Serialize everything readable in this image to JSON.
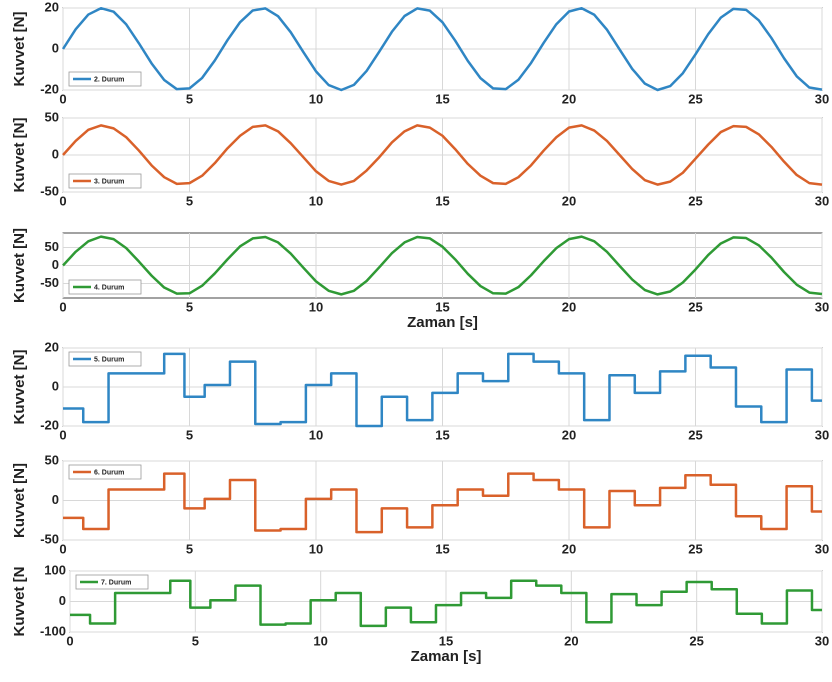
{
  "chart_data": [
    {
      "type": "line",
      "ylabel": "Kuvvet [N]",
      "xlim": [
        0,
        30
      ],
      "xticks": [
        0,
        5,
        10,
        15,
        20,
        25,
        30
      ],
      "ylim": [
        -20,
        20
      ],
      "yticks": [
        -20,
        0,
        20
      ],
      "grid": true,
      "legend": "lower left",
      "x": [
        0,
        0.5,
        1,
        1.5,
        2,
        2.5,
        3,
        3.5,
        4,
        4.5,
        5,
        5.5,
        6,
        6.5,
        7,
        7.5,
        8,
        8.5,
        9,
        9.5,
        10,
        10.5,
        11,
        11.5,
        12,
        12.5,
        13,
        13.5,
        14,
        14.5,
        15,
        15.5,
        16,
        16.5,
        17,
        17.5,
        18,
        18.5,
        19,
        19.5,
        20,
        20.5,
        21,
        21.5,
        22,
        22.5,
        23,
        23.5,
        24,
        24.5,
        25,
        25.5,
        26,
        26.5,
        27,
        27.5,
        28,
        28.5,
        29,
        29.5,
        30
      ],
      "series": [
        {
          "name": "2. Durum",
          "color": "#2f86c4",
          "values": [
            0,
            9.6,
            16.8,
            19.9,
            18.2,
            12,
            2.8,
            -7,
            -15.1,
            -19.6,
            -19.2,
            -14.1,
            -5.6,
            4.3,
            13.1,
            18.8,
            19.8,
            16,
            8.2,
            -1.5,
            -10.9,
            -17.6,
            -20,
            -17.5,
            -10.7,
            -1.3,
            8.4,
            16.1,
            19.8,
            18.7,
            13,
            4.1,
            -5.8,
            -14.2,
            -19.2,
            -19.6,
            -15,
            -6.8,
            3,
            12.1,
            18.3,
            19.9,
            16.7,
            9.4,
            -0.2,
            -9.7,
            -16.9,
            -20,
            -18.1,
            -11.8,
            -2.6,
            7.2,
            15.3,
            19.6,
            19.1,
            14,
            5.4,
            -4.5,
            -13.3,
            -18.8,
            -19.8
          ]
        }
      ]
    },
    {
      "type": "line",
      "ylabel": "Kuvvet [N]",
      "xlim": [
        0,
        30
      ],
      "xticks": [
        0,
        5,
        10,
        15,
        20,
        25,
        30
      ],
      "ylim": [
        -50,
        50
      ],
      "yticks": [
        -50,
        0,
        50
      ],
      "grid": true,
      "legend": "lower left",
      "x": [
        0,
        0.5,
        1,
        1.5,
        2,
        2.5,
        3,
        3.5,
        4,
        4.5,
        5,
        5.5,
        6,
        6.5,
        7,
        7.5,
        8,
        8.5,
        9,
        9.5,
        10,
        10.5,
        11,
        11.5,
        12,
        12.5,
        13,
        13.5,
        14,
        14.5,
        15,
        15.5,
        16,
        16.5,
        17,
        17.5,
        18,
        18.5,
        19,
        19.5,
        20,
        20.5,
        21,
        21.5,
        22,
        22.5,
        23,
        23.5,
        24,
        24.5,
        25,
        25.5,
        26,
        26.5,
        27,
        27.5,
        28,
        28.5,
        29,
        29.5,
        30
      ],
      "series": [
        {
          "name": "3. Durum",
          "color": "#d9612a",
          "values": [
            0,
            19,
            34,
            40,
            36,
            24,
            6,
            -14,
            -30,
            -39,
            -38,
            -28,
            -11,
            9,
            26,
            38,
            40,
            32,
            16,
            -3,
            -22,
            -35,
            -40,
            -35,
            -21,
            -3,
            17,
            32,
            40,
            37,
            26,
            8,
            -12,
            -28,
            -38,
            -39,
            -30,
            -14,
            6,
            24,
            37,
            40,
            33,
            19,
            0,
            -19,
            -34,
            -40,
            -36,
            -24,
            -5,
            14,
            31,
            39,
            38,
            28,
            11,
            -9,
            -27,
            -38,
            -40
          ]
        }
      ]
    },
    {
      "type": "line",
      "ylabel": "Kuvvet [N]",
      "xlabel": "Zaman [s]",
      "xlim": [
        0,
        30
      ],
      "xticks": [
        0,
        5,
        10,
        15,
        20,
        25,
        30
      ],
      "ylim": [
        -90,
        90
      ],
      "yticks": [
        -50,
        0,
        50
      ],
      "grid": true,
      "legend": "lower left",
      "x": [
        0,
        0.5,
        1,
        1.5,
        2,
        2.5,
        3,
        3.5,
        4,
        4.5,
        5,
        5.5,
        6,
        6.5,
        7,
        7.5,
        8,
        8.5,
        9,
        9.5,
        10,
        10.5,
        11,
        11.5,
        12,
        12.5,
        13,
        13.5,
        14,
        14.5,
        15,
        15.5,
        16,
        16.5,
        17,
        17.5,
        18,
        18.5,
        19,
        19.5,
        20,
        20.5,
        21,
        21.5,
        22,
        22.5,
        23,
        23.5,
        24,
        24.5,
        25,
        25.5,
        26,
        26.5,
        27,
        27.5,
        28,
        28.5,
        29,
        29.5,
        30
      ],
      "series": [
        {
          "name": "4. Durum",
          "color": "#2f9a35",
          "values": [
            0,
            38,
            67,
            80,
            73,
            48,
            11,
            -28,
            -61,
            -78,
            -77,
            -56,
            -22,
            17,
            53,
            75,
            79,
            64,
            33,
            -6,
            -44,
            -70,
            -80,
            -70,
            -43,
            -5,
            34,
            64,
            79,
            75,
            52,
            17,
            -23,
            -57,
            -77,
            -78,
            -60,
            -27,
            12,
            48,
            73,
            80,
            67,
            38,
            -1,
            -39,
            -68,
            -80,
            -72,
            -47,
            -11,
            29,
            61,
            78,
            76,
            56,
            22,
            -18,
            -53,
            -75,
            -79
          ]
        }
      ]
    },
    {
      "type": "line",
      "step": "post",
      "ylabel": "Kuvvet [N]",
      "xlim": [
        0,
        30
      ],
      "xticks": [
        0,
        5,
        10,
        15,
        20,
        25,
        30
      ],
      "ylim": [
        -20,
        20
      ],
      "yticks": [
        -20,
        0,
        20
      ],
      "grid": true,
      "legend": "upper left",
      "x": [
        0,
        0.8,
        1.8,
        4,
        4.8,
        5.6,
        6.6,
        7.6,
        8.6,
        9.6,
        10.6,
        11.6,
        12.6,
        13.6,
        14.6,
        15.6,
        16.6,
        17.6,
        18.6,
        19.6,
        20.6,
        21.6,
        22.6,
        23.6,
        24.6,
        25.6,
        26.6,
        27.6,
        28.6,
        29.6,
        30
      ],
      "series": [
        {
          "name": "5. Durum",
          "color": "#2f86c4",
          "values": [
            -11,
            -18,
            7,
            17,
            -5,
            1,
            13,
            -19,
            -18,
            1,
            7,
            -20,
            -5,
            -17,
            -3,
            7,
            3,
            17,
            13,
            7,
            -17,
            6,
            -3,
            8,
            16,
            10,
            -10,
            -18,
            9,
            -7,
            -7
          ]
        }
      ]
    },
    {
      "type": "line",
      "step": "post",
      "ylabel": "Kuvvet [N]",
      "xlim": [
        0,
        30
      ],
      "xticks": [
        0,
        5,
        10,
        15,
        20,
        25,
        30
      ],
      "ylim": [
        -50,
        50
      ],
      "yticks": [
        -50,
        0,
        50
      ],
      "grid": true,
      "legend": "upper left",
      "x": [
        0,
        0.8,
        1.8,
        4,
        4.8,
        5.6,
        6.6,
        7.6,
        8.6,
        9.6,
        10.6,
        11.6,
        12.6,
        13.6,
        14.6,
        15.6,
        16.6,
        17.6,
        18.6,
        19.6,
        20.6,
        21.6,
        22.6,
        23.6,
        24.6,
        25.6,
        26.6,
        27.6,
        28.6,
        29.6,
        30
      ],
      "series": [
        {
          "name": "6. Durum",
          "color": "#d9612a",
          "values": [
            -22,
            -36,
            14,
            34,
            -10,
            2,
            26,
            -38,
            -36,
            2,
            14,
            -40,
            -10,
            -34,
            -6,
            14,
            6,
            34,
            26,
            14,
            -34,
            12,
            -6,
            16,
            32,
            20,
            -20,
            -36,
            18,
            -14,
            -14
          ]
        }
      ]
    },
    {
      "type": "line",
      "step": "post",
      "ylabel": "Kuvvet [N",
      "xlabel": "Zaman [s]",
      "xlim": [
        0,
        30
      ],
      "xticks": [
        0,
        5,
        10,
        15,
        20,
        25,
        30
      ],
      "ylim": [
        -100,
        100
      ],
      "yticks": [
        -100,
        0,
        100
      ],
      "grid": true,
      "legend": "upper left",
      "x": [
        0,
        0.8,
        1.8,
        4,
        4.8,
        5.6,
        6.6,
        7.6,
        8.6,
        9.6,
        10.6,
        11.6,
        12.6,
        13.6,
        14.6,
        15.6,
        16.6,
        17.6,
        18.6,
        19.6,
        20.6,
        21.6,
        22.6,
        23.6,
        24.6,
        25.6,
        26.6,
        27.6,
        28.6,
        29.6,
        30
      ],
      "series": [
        {
          "name": "7. Durum",
          "color": "#2f9a35",
          "values": [
            -44,
            -72,
            28,
            68,
            -20,
            4,
            52,
            -76,
            -72,
            4,
            28,
            -80,
            -20,
            -68,
            -12,
            28,
            12,
            68,
            52,
            28,
            -68,
            24,
            -12,
            32,
            64,
            40,
            -40,
            -72,
            36,
            -28,
            -28
          ]
        }
      ]
    }
  ]
}
